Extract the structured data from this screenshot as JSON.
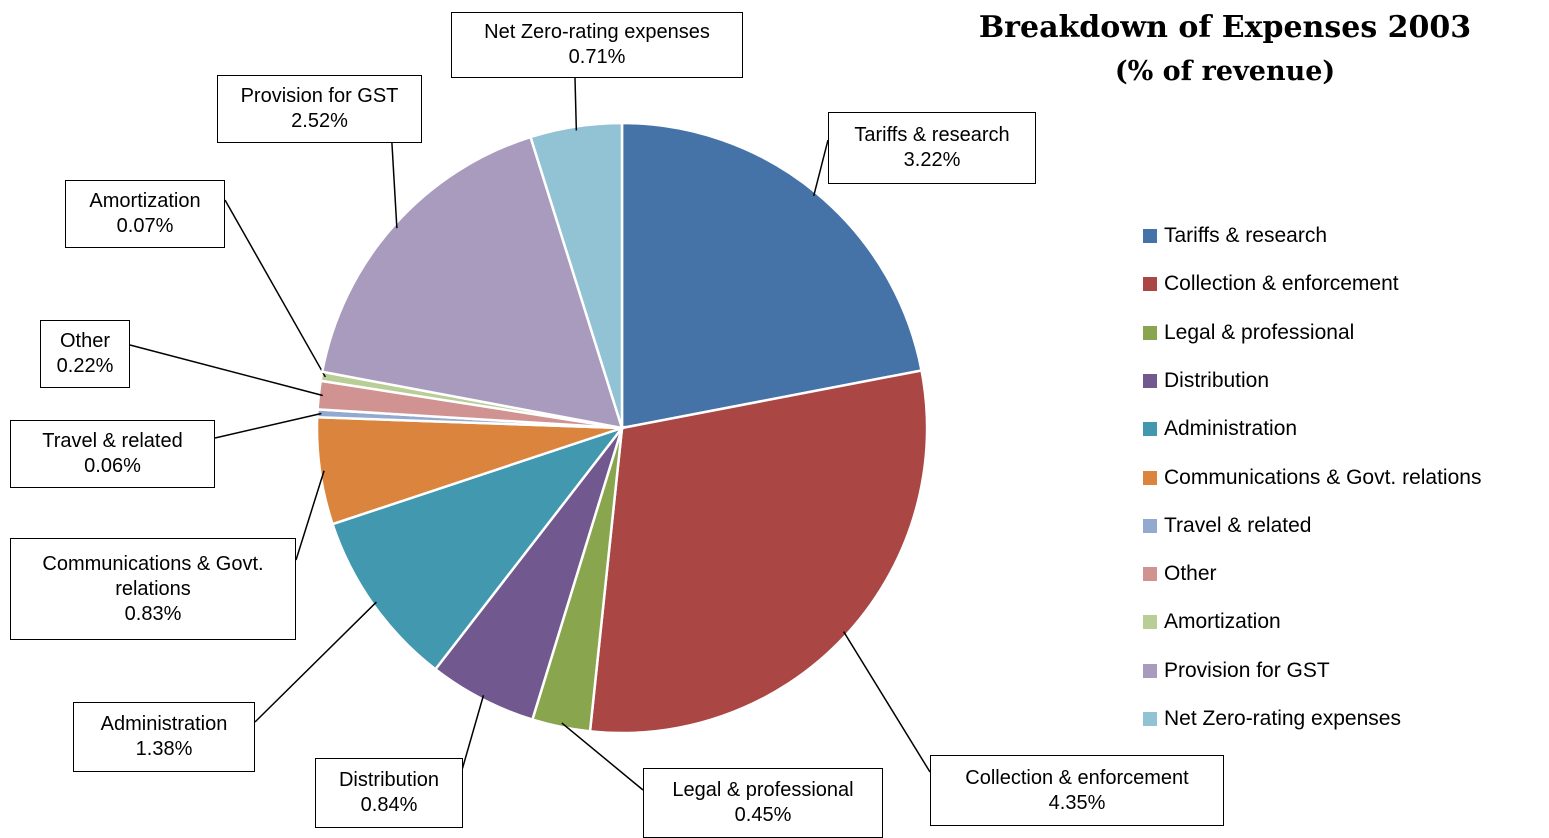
{
  "chart_data": {
    "type": "pie",
    "title": "Breakdown of Expenses 2003",
    "subtitle": "(% of revenue)",
    "categories": [
      "Tariffs & research",
      "Collection & enforcement",
      "Legal & professional",
      "Distribution",
      "Administration",
      "Communications & Govt. relations",
      "Travel & related",
      "Other",
      "Amortization",
      "Provision for GST",
      "Net Zero-rating expenses"
    ],
    "values": [
      3.22,
      4.35,
      0.45,
      0.84,
      1.38,
      0.83,
      0.06,
      0.22,
      0.07,
      2.52,
      0.71
    ],
    "value_labels": [
      "3.22%",
      "4.35%",
      "0.45%",
      "0.84%",
      "1.38%",
      "0.83%",
      "0.06%",
      "0.22%",
      "0.07%",
      "2.52%",
      "0.71%"
    ],
    "colors": [
      "#4572a7",
      "#aa4643",
      "#89a54e",
      "#71588f",
      "#4198af",
      "#db843d",
      "#93a9cf",
      "#d19392",
      "#b9cd96",
      "#a99bbd",
      "#92c3d5"
    ],
    "legend": "right"
  }
}
